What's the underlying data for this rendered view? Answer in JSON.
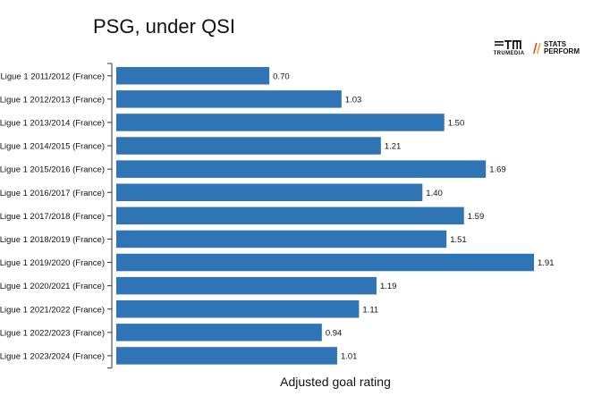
{
  "chart_data": {
    "type": "bar",
    "orientation": "horizontal",
    "title": "PSG, under QSI",
    "xlabel": "Adjusted goal rating",
    "ylabel": "",
    "xlim": [
      0,
      2.0
    ],
    "grid": false,
    "bar_color": "#2f74b5",
    "categories": [
      "Ligue 1 2011/2012 (France)",
      "Ligue 1 2012/2013 (France)",
      "Ligue 1 2013/2014 (France)",
      "Ligue 1 2014/2015 (France)",
      "Ligue 1 2015/2016 (France)",
      "Ligue 1 2016/2017 (France)",
      "Ligue 1 2017/2018 (France)",
      "Ligue 1 2018/2019 (France)",
      "Ligue 1 2019/2020 (France)",
      "Ligue 1 2020/2021 (France)",
      "Ligue 1 2021/2022 (France)",
      "Ligue 1 2022/2023 (France)",
      "Ligue 1 2023/2024 (France)"
    ],
    "values": [
      0.7,
      1.03,
      1.5,
      1.21,
      1.69,
      1.4,
      1.59,
      1.51,
      1.91,
      1.19,
      1.11,
      0.94,
      1.01
    ],
    "value_labels": [
      "0.70",
      "1.03",
      "1.50",
      "1.21",
      "1.69",
      "1.40",
      "1.59",
      "1.51",
      "1.91",
      "1.19",
      "1.11",
      "0.94",
      "1.01"
    ]
  },
  "logos": {
    "trumedia": {
      "text": "TRUMEDIA",
      "icon": "trumedia-logo-icon"
    },
    "statsperform": {
      "line1": "STATS",
      "line2": "PERFORM",
      "icon": "statsperform-logo-icon",
      "accent": "#e8412f"
    }
  }
}
